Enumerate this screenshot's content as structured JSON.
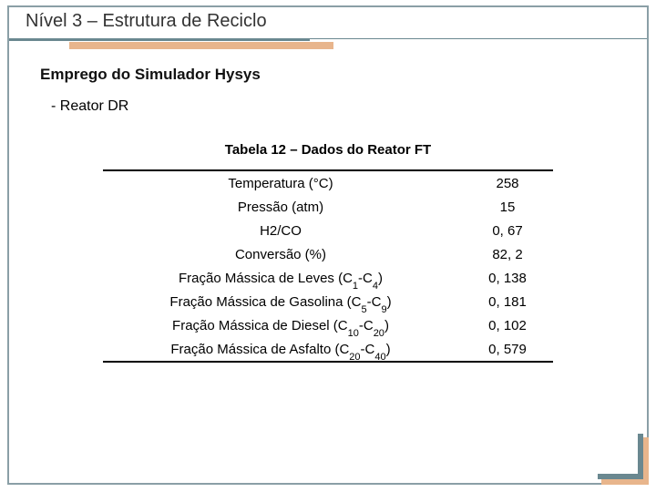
{
  "title": "Nível 3 – Estrutura de Reciclo",
  "subtitle": "Emprego do Simulador Hysys",
  "section": "- Reator DR",
  "table_title": "Tabela 12 – Dados do Reator FT",
  "colors": {
    "frame": "#8a9fa6",
    "accent_primary": "#6a8890",
    "accent_shadow": "#e8b58c",
    "text": "#333333"
  },
  "table": {
    "rows": [
      {
        "label_html": "Temperatura (°C)",
        "value": "258"
      },
      {
        "label_html": "Pressão (atm)",
        "value": "15"
      },
      {
        "label_html": "H2/CO",
        "value": "0, 67"
      },
      {
        "label_html": "Conversão (%)",
        "value": "82, 2"
      },
      {
        "label_html": "Fração Mássica de Leves (C<sub>1</sub>-C<sub>4</sub>)",
        "value": "0, 138"
      },
      {
        "label_html": "Fração Mássica de Gasolina (C<sub>5</sub>-C<sub>9</sub>)",
        "value": "0, 181"
      },
      {
        "label_html": "Fração Mássica de Diesel (C<sub>10</sub>-C<sub>20</sub>)",
        "value": "0, 102"
      },
      {
        "label_html": "Fração Mássica de Asfalto (C<sub>20</sub>-C<sub>40</sub>)",
        "value": "0, 579"
      }
    ]
  }
}
